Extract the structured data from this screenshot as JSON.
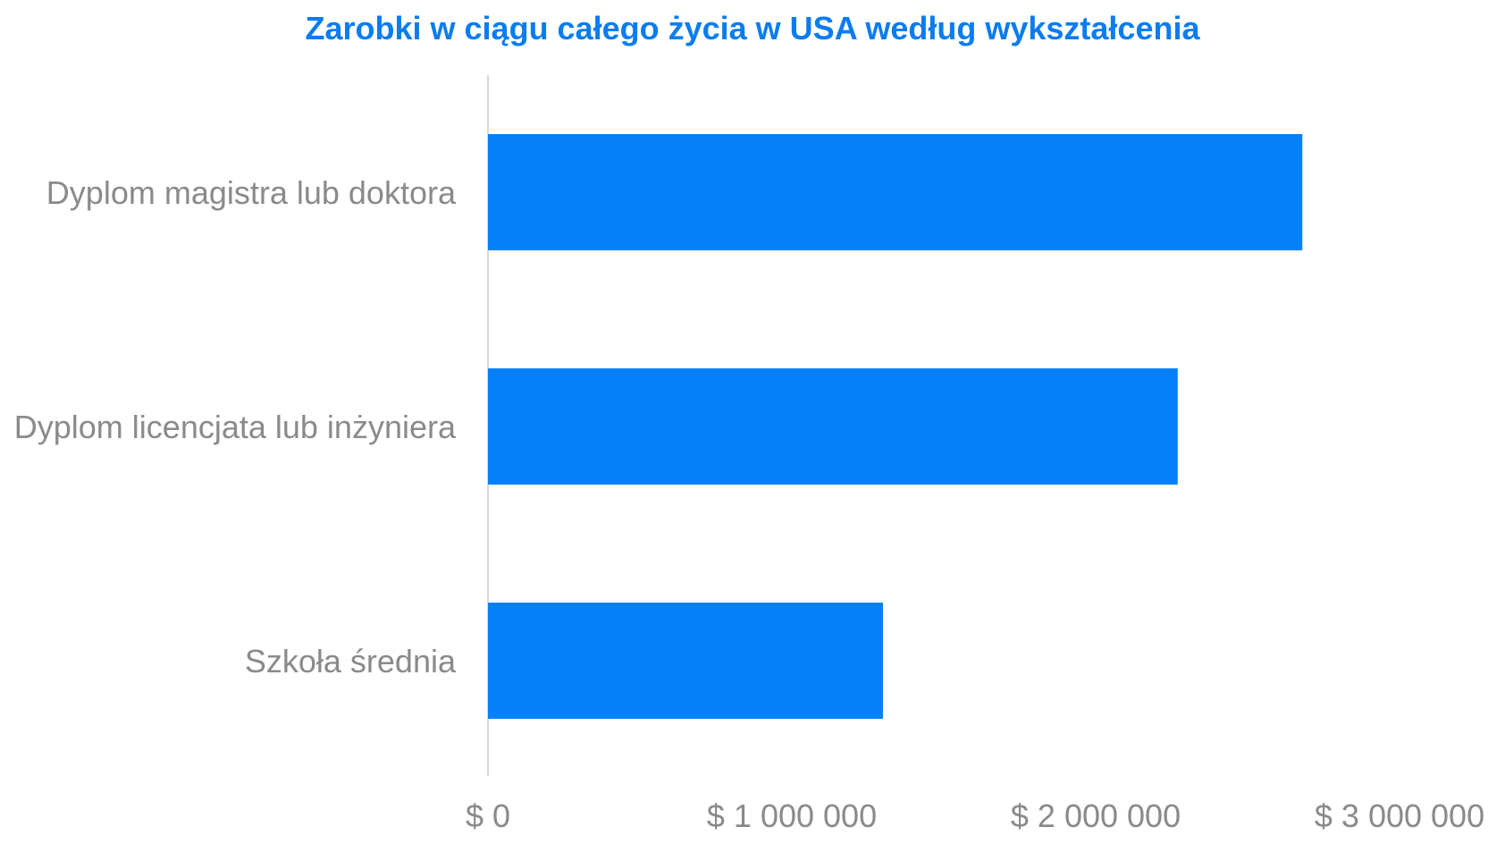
{
  "chart_data": {
    "type": "bar",
    "orientation": "horizontal",
    "title": "Zarobki w ciągu całego życia w USA według wykształcenia",
    "categories": [
      "Dyplom magistra lub doktora",
      "Dyplom licencjata lub inżyniera",
      "Szkoła średnia"
    ],
    "values": [
      2680000,
      2270000,
      1300000
    ],
    "xlim": [
      0,
      3000000
    ],
    "x_ticks": [
      0,
      1000000,
      2000000,
      3000000
    ],
    "x_tick_labels": [
      "$ 0",
      "$ 1 000 000",
      "$ 2 000 000",
      "$ 3 000 000"
    ],
    "xlabel": "",
    "ylabel": "",
    "grid": false,
    "legend": "none",
    "bar_color": "#0580f7",
    "title_color": "#0a7cf0",
    "label_color": "#8a8a8a",
    "axis_color": "#d9d9d9"
  }
}
